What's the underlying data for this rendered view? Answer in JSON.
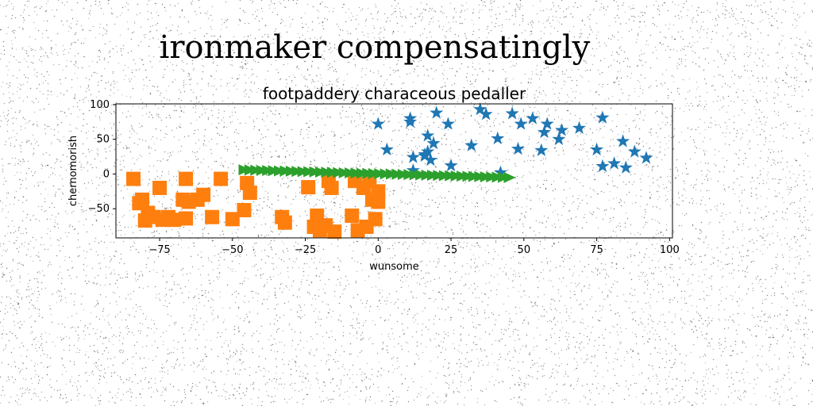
{
  "page": {
    "suptitle": "ironmaker compensatingly"
  },
  "chart_data": {
    "type": "scatter",
    "title": "footpaddery characeous pedaller",
    "xlabel": "wunsome",
    "ylabel": "chernomorish",
    "xlim": [
      -90,
      101
    ],
    "ylim": [
      -92,
      101
    ],
    "xticks": [
      -75,
      -50,
      -25,
      0,
      25,
      50,
      75,
      100
    ],
    "yticks": [
      -50,
      0,
      50,
      100
    ],
    "xtick_labels": [
      "−75",
      "−50",
      "−25",
      "0",
      "25",
      "50",
      "75",
      "100"
    ],
    "ytick_labels": [
      "−50",
      "0",
      "50",
      "100"
    ],
    "grid": false,
    "series": [
      {
        "marker": "star",
        "color": "#1f77b4",
        "points": [
          [
            0,
            72
          ],
          [
            3,
            35
          ],
          [
            11,
            80
          ],
          [
            11,
            75
          ],
          [
            12,
            24
          ],
          [
            17,
            32
          ],
          [
            18,
            20
          ],
          [
            16,
            28
          ],
          [
            17,
            55
          ],
          [
            19,
            44
          ],
          [
            20,
            88
          ],
          [
            24,
            72
          ],
          [
            25,
            12
          ],
          [
            12,
            5
          ],
          [
            32,
            41
          ],
          [
            35,
            93
          ],
          [
            37,
            86
          ],
          [
            41,
            51
          ],
          [
            42,
            2
          ],
          [
            46,
            87
          ],
          [
            48,
            36
          ],
          [
            49,
            72
          ],
          [
            53,
            80
          ],
          [
            56,
            34
          ],
          [
            57,
            60
          ],
          [
            58,
            72
          ],
          [
            62,
            50
          ],
          [
            63,
            63
          ],
          [
            69,
            66
          ],
          [
            75,
            35
          ],
          [
            77,
            11
          ],
          [
            77,
            81
          ],
          [
            81,
            15
          ],
          [
            84,
            47
          ],
          [
            85,
            9
          ],
          [
            88,
            32
          ],
          [
            92,
            23
          ],
          [
            16,
            26
          ]
        ]
      },
      {
        "marker": "square",
        "color": "#ff7f0e",
        "points": [
          [
            -84,
            -7
          ],
          [
            -82,
            -42
          ],
          [
            -81,
            -37
          ],
          [
            -80,
            -67
          ],
          [
            -79,
            -56
          ],
          [
            -77,
            -62
          ],
          [
            -75,
            -20
          ],
          [
            -74,
            -66
          ],
          [
            -72,
            -62
          ],
          [
            -70,
            -66
          ],
          [
            -67,
            -37
          ],
          [
            -66,
            -64
          ],
          [
            -66,
            -7
          ],
          [
            -65,
            -40
          ],
          [
            -62,
            -37
          ],
          [
            -60,
            -30
          ],
          [
            -57,
            -62
          ],
          [
            -54,
            -7
          ],
          [
            -50,
            -65
          ],
          [
            -46,
            -52
          ],
          [
            -45,
            -13
          ],
          [
            -44,
            -27
          ],
          [
            -33,
            -62
          ],
          [
            -32,
            -70
          ],
          [
            -24,
            -19
          ],
          [
            -22,
            -76
          ],
          [
            -21,
            -60
          ],
          [
            -20,
            -81
          ],
          [
            -18,
            -74
          ],
          [
            -17,
            -10
          ],
          [
            -16,
            -20
          ],
          [
            -15,
            -83
          ],
          [
            -9,
            -60
          ],
          [
            -8,
            -10
          ],
          [
            -7,
            -81
          ],
          [
            -4,
            -76
          ],
          [
            -2,
            -37
          ],
          [
            -1,
            -65
          ],
          [
            0,
            -25
          ],
          [
            0,
            -40
          ],
          [
            -5,
            -20
          ],
          [
            -3,
            -10
          ]
        ]
      },
      {
        "marker": "triangle-right",
        "color": "#2ca02c",
        "start": [
          -46,
          6
        ],
        "end": [
          45,
          -5
        ],
        "count": 46
      }
    ]
  }
}
